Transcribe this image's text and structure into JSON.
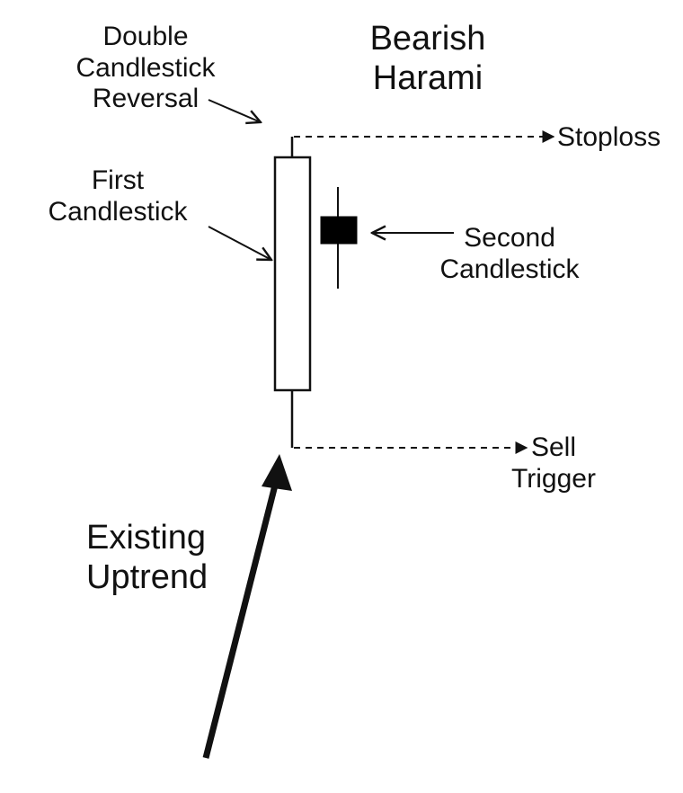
{
  "title": [
    "Bearish",
    "Harami"
  ],
  "labels": {
    "pattern_type": [
      "Double",
      "Candlestick",
      "Reversal"
    ],
    "first_candle": [
      "First",
      "Candlestick"
    ],
    "second_candle": [
      "Second",
      "Candlestick"
    ],
    "stoploss": "Stoploss",
    "sell_trigger": [
      "Sell",
      "Trigger"
    ],
    "trend": [
      "Existing",
      "Uptrend"
    ]
  },
  "colors": {
    "line": "#111111",
    "first_candle_fill": "#ffffff",
    "second_candle_fill": "#000000",
    "background": "#ffffff"
  }
}
